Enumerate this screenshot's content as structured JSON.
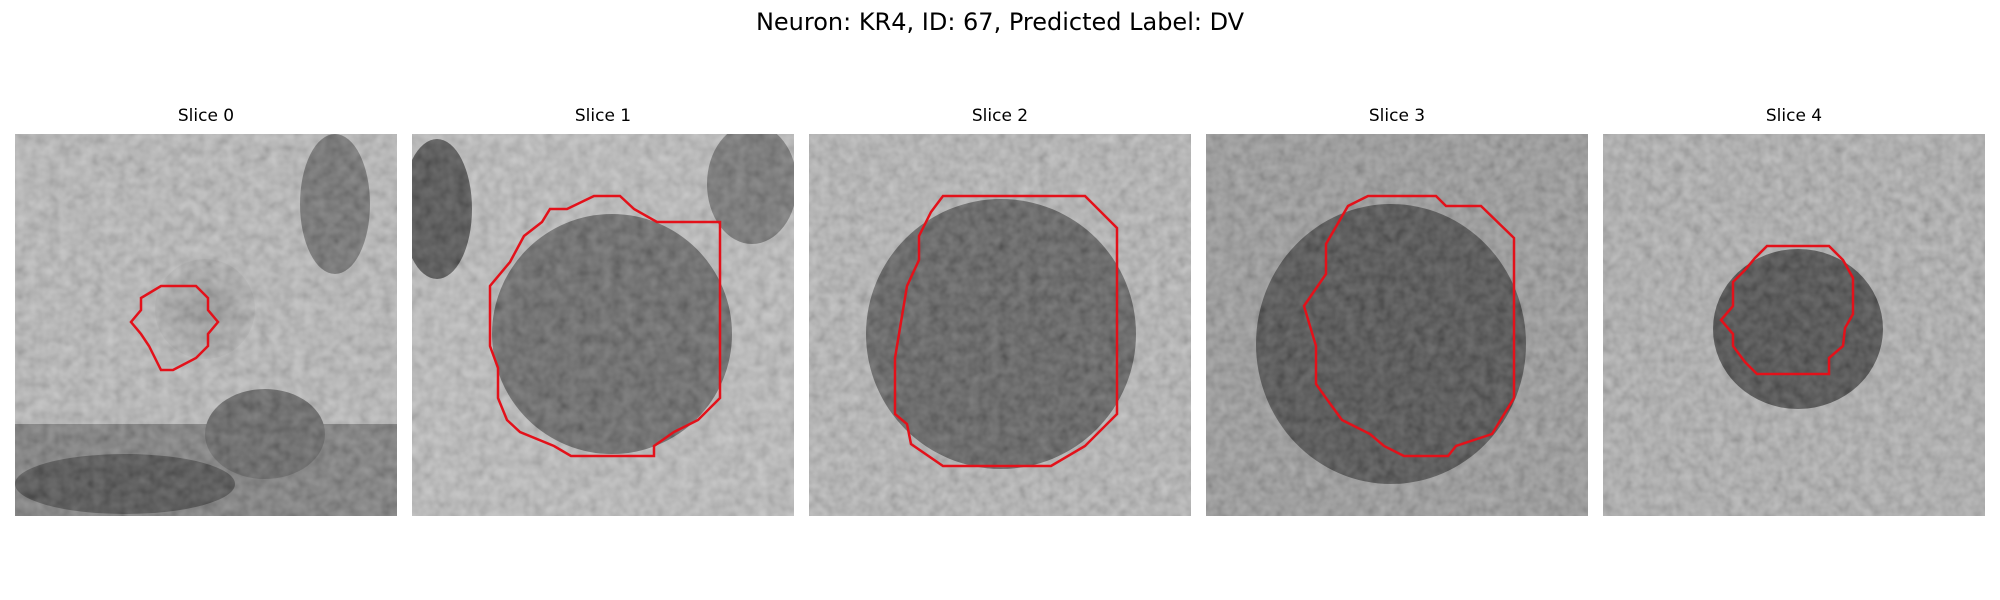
{
  "figure": {
    "title": "Neuron: KR4, ID: 67, Predicted Label: DV"
  },
  "panels": [
    {
      "title": "Slice 0",
      "contour_color": "#e3111a"
    },
    {
      "title": "Slice 1",
      "contour_color": "#e3111a"
    },
    {
      "title": "Slice 2",
      "contour_color": "#e3111a"
    },
    {
      "title": "Slice 3",
      "contour_color": "#e3111a"
    },
    {
      "title": "Slice 4",
      "contour_color": "#e3111a"
    }
  ]
}
